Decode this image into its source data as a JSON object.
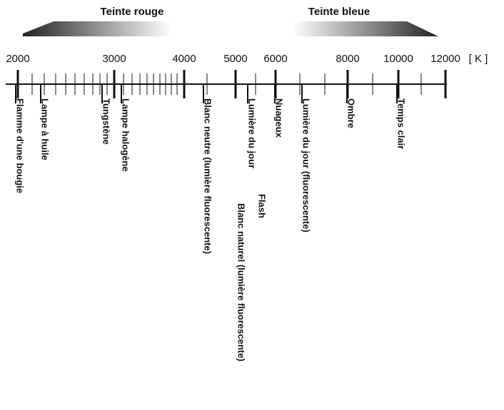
{
  "arrows": [
    {
      "label": "Teinte rouge"
    },
    {
      "label": "Teinte bleue"
    }
  ],
  "scale": {
    "ticks": [
      "2000",
      "3000",
      "4000",
      "5000",
      "6000",
      "8000",
      "10000",
      "12000"
    ],
    "unit": "[ K ]"
  },
  "markers": [
    {
      "label": "Flamme d'une bougie"
    },
    {
      "label": "Lampe à huile"
    },
    {
      "label": "Tungstène"
    },
    {
      "label": "Lampe halogène"
    },
    {
      "label": "Blanc neutre (lumière fluorescente)"
    },
    {
      "label": "Blanc naturel (lumière fluorescente)"
    },
    {
      "label": "Lumière du jour"
    },
    {
      "label": "Flash"
    },
    {
      "label": "Nuageux"
    },
    {
      "label": "Lumière du jour (fluorescente)"
    },
    {
      "label": "Ombre"
    },
    {
      "label": "Temps clair"
    }
  ]
}
